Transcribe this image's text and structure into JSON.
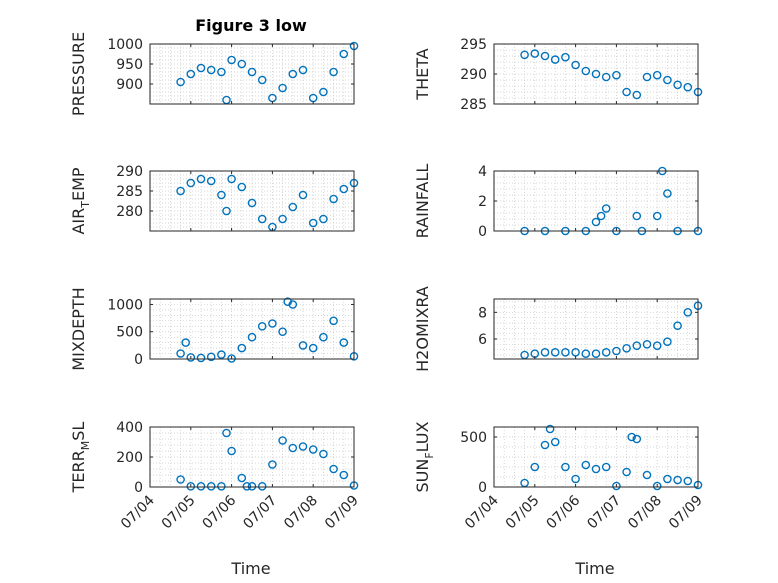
{
  "figure": {
    "title": "Figure 3 low",
    "xlabel": "Time"
  },
  "colors": {
    "marker": "#0072BD",
    "axes": "#262626",
    "grid": "#c8c8c8",
    "background": "#ffffff"
  },
  "chart_data": [
    {
      "type": "scatter",
      "ylabel": "PRESSURE",
      "xlim": [
        "07/04",
        "07/09"
      ],
      "ylim": [
        850,
        1000
      ],
      "yticks": [
        900,
        950,
        1000
      ],
      "xticks": [
        "07/04",
        "07/05",
        "07/06",
        "07/07",
        "07/08",
        "07/09"
      ],
      "show_x_ticklabels": false,
      "grid": "minor-dotted",
      "series": [
        {
          "x": [
            "07/04 18:00",
            "07/05 00:00",
            "07/05 06:00",
            "07/05 12:00",
            "07/05 18:00",
            "07/05 21:00",
            "07/06 00:00",
            "07/06 06:00",
            "07/06 12:00",
            "07/06 18:00",
            "07/07 00:00",
            "07/07 06:00",
            "07/07 12:00",
            "07/07 18:00",
            "07/08 00:00",
            "07/08 06:00",
            "07/08 12:00",
            "07/08 18:00",
            "07/09 00:00"
          ],
          "y": [
            905,
            925,
            940,
            935,
            930,
            860,
            960,
            950,
            930,
            910,
            865,
            890,
            925,
            935,
            865,
            880,
            930,
            975,
            995
          ]
        }
      ]
    },
    {
      "type": "scatter",
      "ylabel": "THETA",
      "xlim": [
        "07/04",
        "07/09"
      ],
      "ylim": [
        285,
        295
      ],
      "yticks": [
        285,
        290,
        295
      ],
      "xticks": [
        "07/04",
        "07/05",
        "07/06",
        "07/07",
        "07/08",
        "07/09"
      ],
      "show_x_ticklabels": false,
      "grid": "minor-dotted",
      "series": [
        {
          "x": [
            "07/04 18:00",
            "07/05 00:00",
            "07/05 06:00",
            "07/05 12:00",
            "07/05 18:00",
            "07/06 00:00",
            "07/06 06:00",
            "07/06 12:00",
            "07/06 18:00",
            "07/07 00:00",
            "07/07 06:00",
            "07/07 12:00",
            "07/07 18:00",
            "07/08 00:00",
            "07/08 06:00",
            "07/08 12:00",
            "07/08 18:00",
            "07/09 00:00"
          ],
          "y": [
            293.2,
            293.4,
            293.0,
            292.4,
            292.8,
            291.5,
            290.5,
            290.0,
            289.5,
            289.8,
            287.0,
            286.5,
            289.5,
            289.8,
            289.0,
            288.2,
            287.8,
            287.0
          ]
        }
      ]
    },
    {
      "type": "scatter",
      "ylabel": "AIR_TEMP",
      "xlim": [
        "07/04",
        "07/09"
      ],
      "ylim": [
        275,
        290
      ],
      "yticks": [
        280,
        285,
        290
      ],
      "xticks": [
        "07/04",
        "07/05",
        "07/06",
        "07/07",
        "07/08",
        "07/09"
      ],
      "show_x_ticklabels": false,
      "grid": "minor-dotted",
      "series": [
        {
          "x": [
            "07/04 18:00",
            "07/05 00:00",
            "07/05 06:00",
            "07/05 12:00",
            "07/05 18:00",
            "07/05 21:00",
            "07/06 00:00",
            "07/06 06:00",
            "07/06 12:00",
            "07/06 18:00",
            "07/07 00:00",
            "07/07 06:00",
            "07/07 12:00",
            "07/07 18:00",
            "07/08 00:00",
            "07/08 06:00",
            "07/08 12:00",
            "07/08 18:00",
            "07/09 00:00"
          ],
          "y": [
            285,
            287,
            288,
            287.5,
            284,
            280,
            288,
            286,
            282,
            278,
            276,
            278,
            281,
            284,
            277,
            278,
            283,
            285.5,
            287
          ]
        }
      ]
    },
    {
      "type": "scatter",
      "ylabel": "RAINFALL",
      "xlim": [
        "07/04",
        "07/09"
      ],
      "ylim": [
        0,
        4
      ],
      "yticks": [
        0,
        2,
        4
      ],
      "xticks": [
        "07/04",
        "07/05",
        "07/06",
        "07/07",
        "07/08",
        "07/09"
      ],
      "show_x_ticklabels": false,
      "grid": "minor-dotted",
      "series": [
        {
          "x": [
            "07/04 18:00",
            "07/05 06:00",
            "07/05 18:00",
            "07/06 06:00",
            "07/06 12:00",
            "07/06 15:00",
            "07/06 18:00",
            "07/07 00:00",
            "07/07 12:00",
            "07/07 15:00",
            "07/08 00:00",
            "07/08 03:00",
            "07/08 06:00",
            "07/08 12:00",
            "07/09 00:00"
          ],
          "y": [
            0,
            0,
            0,
            0,
            0.6,
            1.0,
            1.5,
            0,
            1.0,
            0,
            1.0,
            4.0,
            2.5,
            0,
            0
          ]
        }
      ]
    },
    {
      "type": "scatter",
      "ylabel": "MIXDEPTH",
      "xlim": [
        "07/04",
        "07/09"
      ],
      "ylim": [
        0,
        1100
      ],
      "yticks": [
        0,
        500,
        1000
      ],
      "xticks": [
        "07/04",
        "07/05",
        "07/06",
        "07/07",
        "07/08",
        "07/09"
      ],
      "show_x_ticklabels": false,
      "grid": "minor-dotted",
      "series": [
        {
          "x": [
            "07/04 18:00",
            "07/04 21:00",
            "07/05 00:00",
            "07/05 06:00",
            "07/05 12:00",
            "07/05 18:00",
            "07/06 00:00",
            "07/06 06:00",
            "07/06 12:00",
            "07/06 18:00",
            "07/07 00:00",
            "07/07 06:00",
            "07/07 09:00",
            "07/07 12:00",
            "07/07 18:00",
            "07/08 00:00",
            "07/08 06:00",
            "07/08 12:00",
            "07/08 18:00",
            "07/09 00:00"
          ],
          "y": [
            100,
            300,
            30,
            20,
            40,
            80,
            10,
            200,
            400,
            600,
            650,
            500,
            1050,
            1000,
            250,
            200,
            400,
            700,
            300,
            50
          ]
        }
      ]
    },
    {
      "type": "scatter",
      "ylabel": "H2OMIXRA",
      "xlim": [
        "07/04",
        "07/09"
      ],
      "ylim": [
        4.5,
        9
      ],
      "yticks": [
        6,
        8
      ],
      "xticks": [
        "07/04",
        "07/05",
        "07/06",
        "07/07",
        "07/08",
        "07/09"
      ],
      "show_x_ticklabels": false,
      "grid": "minor-dotted",
      "series": [
        {
          "x": [
            "07/04 18:00",
            "07/05 00:00",
            "07/05 06:00",
            "07/05 12:00",
            "07/05 18:00",
            "07/06 00:00",
            "07/06 06:00",
            "07/06 12:00",
            "07/06 18:00",
            "07/07 00:00",
            "07/07 06:00",
            "07/07 12:00",
            "07/07 18:00",
            "07/08 00:00",
            "07/08 06:00",
            "07/08 12:00",
            "07/08 18:00",
            "07/09 00:00"
          ],
          "y": [
            4.8,
            4.9,
            5.0,
            5.0,
            5.0,
            5.0,
            4.9,
            4.9,
            5.0,
            5.1,
            5.3,
            5.5,
            5.6,
            5.5,
            5.8,
            7.0,
            8.0,
            8.5
          ]
        }
      ]
    },
    {
      "type": "scatter",
      "ylabel": "TERR_MSL",
      "xlim": [
        "07/04",
        "07/09"
      ],
      "ylim": [
        0,
        400
      ],
      "yticks": [
        0,
        200,
        400
      ],
      "xticks": [
        "07/04",
        "07/05",
        "07/06",
        "07/07",
        "07/08",
        "07/09"
      ],
      "show_x_ticklabels": true,
      "grid": "minor-dotted",
      "series": [
        {
          "x": [
            "07/04 18:00",
            "07/05 00:00",
            "07/05 06:00",
            "07/05 12:00",
            "07/05 18:00",
            "07/05 21:00",
            "07/06 00:00",
            "07/06 06:00",
            "07/06 09:00",
            "07/06 12:00",
            "07/06 18:00",
            "07/07 00:00",
            "07/07 06:00",
            "07/07 12:00",
            "07/07 18:00",
            "07/08 00:00",
            "07/08 06:00",
            "07/08 12:00",
            "07/08 18:00",
            "07/09 00:00"
          ],
          "y": [
            50,
            5,
            5,
            5,
            5,
            360,
            240,
            60,
            5,
            5,
            5,
            150,
            310,
            260,
            270,
            250,
            220,
            120,
            80,
            10
          ]
        }
      ]
    },
    {
      "type": "scatter",
      "ylabel": "SUN_FLUX",
      "xlim": [
        "07/04",
        "07/09"
      ],
      "ylim": [
        0,
        600
      ],
      "yticks": [
        0,
        500
      ],
      "xticks": [
        "07/04",
        "07/05",
        "07/06",
        "07/07",
        "07/08",
        "07/09"
      ],
      "show_x_ticklabels": true,
      "grid": "minor-dotted",
      "series": [
        {
          "x": [
            "07/04 18:00",
            "07/05 00:00",
            "07/05 06:00",
            "07/05 09:00",
            "07/05 12:00",
            "07/05 18:00",
            "07/06 00:00",
            "07/06 06:00",
            "07/06 12:00",
            "07/06 18:00",
            "07/07 00:00",
            "07/07 06:00",
            "07/07 09:00",
            "07/07 12:00",
            "07/07 18:00",
            "07/08 00:00",
            "07/08 06:00",
            "07/08 12:00",
            "07/08 18:00",
            "07/09 00:00"
          ],
          "y": [
            40,
            200,
            420,
            580,
            450,
            200,
            80,
            220,
            180,
            200,
            10,
            150,
            500,
            480,
            120,
            10,
            80,
            70,
            60,
            20
          ]
        }
      ]
    }
  ]
}
